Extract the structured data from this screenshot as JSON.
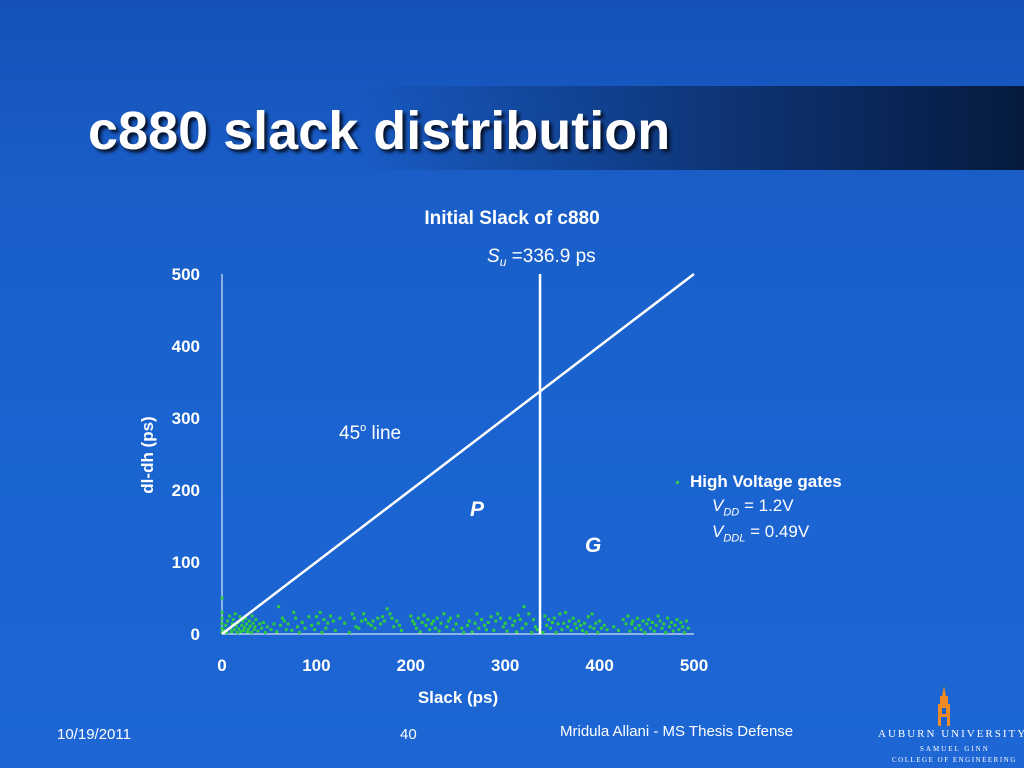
{
  "slide": {
    "title": "c880 slack distribution",
    "footer_date": "10/19/2011",
    "footer_page": "40",
    "footer_author": "Mridula Allani - MS Thesis Defense"
  },
  "logo": {
    "name": "AUBURN UNIVERSITY",
    "sub1": "SAMUEL GINN",
    "sub2": "COLLEGE OF ENGINEERING"
  },
  "legend": {
    "label": "High Voltage gates",
    "vdd_symbol": "V",
    "vdd_sub": "DD",
    "vdd_value": " = 1.2V",
    "vddl_symbol": "V",
    "vddl_sub": "DDL",
    "vddl_value": " = 0.49V"
  },
  "colors": {
    "background": "#1a5ec8",
    "points": "#2ecc40",
    "lines": "#ffffff"
  },
  "chart_data": {
    "type": "scatter",
    "title": "Initial Slack of c880",
    "xlabel": "Slack (ps)",
    "ylabel": "dl-dh (ps)",
    "xlim": [
      0,
      500
    ],
    "ylim": [
      0,
      500
    ],
    "xticks": [
      "0",
      "100",
      "200",
      "300",
      "400",
      "500"
    ],
    "yticks": [
      "0",
      "100",
      "200",
      "300",
      "400",
      "500"
    ],
    "grid": false,
    "legend_position": "right",
    "annotations": {
      "su_symbol": "S",
      "su_sub": "u",
      "su_value": " =336.9 ps",
      "line_label_num": "45",
      "line_label_sup": "o",
      "line_label_text": " line",
      "region_left": "P",
      "region_right": "G"
    },
    "vertical_line_x": 336.9,
    "diagonal_line": {
      "x": [
        0,
        500
      ],
      "y": [
        0,
        500
      ]
    },
    "series": [
      {
        "name": "High Voltage gates",
        "points": [
          [
            0,
            2
          ],
          [
            0,
            8
          ],
          [
            0,
            15
          ],
          [
            0,
            22
          ],
          [
            0,
            30
          ],
          [
            0,
            50
          ],
          [
            2,
            5
          ],
          [
            4,
            12
          ],
          [
            5,
            2
          ],
          [
            6,
            18
          ],
          [
            8,
            25
          ],
          [
            9,
            8
          ],
          [
            10,
            3
          ],
          [
            11,
            14
          ],
          [
            12,
            20
          ],
          [
            13,
            6
          ],
          [
            14,
            28
          ],
          [
            15,
            11
          ],
          [
            16,
            2
          ],
          [
            17,
            16
          ],
          [
            18,
            7
          ],
          [
            19,
            24
          ],
          [
            20,
            3
          ],
          [
            21,
            12
          ],
          [
            22,
            18
          ],
          [
            23,
            5
          ],
          [
            24,
            9
          ],
          [
            25,
            22
          ],
          [
            26,
            14
          ],
          [
            27,
            3
          ],
          [
            28,
            7
          ],
          [
            29,
            18
          ],
          [
            30,
            11
          ],
          [
            31,
            2
          ],
          [
            32,
            25
          ],
          [
            33,
            15
          ],
          [
            34,
            6
          ],
          [
            35,
            10
          ],
          [
            36,
            20
          ],
          [
            38,
            4
          ],
          [
            40,
            14
          ],
          [
            42,
            8
          ],
          [
            44,
            16
          ],
          [
            46,
            2
          ],
          [
            48,
            10
          ],
          [
            52,
            6
          ],
          [
            55,
            14
          ],
          [
            58,
            3
          ],
          [
            60,
            38
          ],
          [
            62,
            12
          ],
          [
            64,
            22
          ],
          [
            66,
            18
          ],
          [
            68,
            6
          ],
          [
            70,
            14
          ],
          [
            74,
            5
          ],
          [
            76,
            30
          ],
          [
            78,
            22
          ],
          [
            80,
            10
          ],
          [
            82,
            2
          ],
          [
            85,
            16
          ],
          [
            88,
            8
          ],
          [
            92,
            24
          ],
          [
            95,
            12
          ],
          [
            98,
            6
          ],
          [
            100,
            24
          ],
          [
            102,
            15
          ],
          [
            104,
            30
          ],
          [
            106,
            2
          ],
          [
            108,
            20
          ],
          [
            110,
            8
          ],
          [
            112,
            15
          ],
          [
            115,
            25
          ],
          [
            118,
            18
          ],
          [
            120,
            5
          ],
          [
            125,
            22
          ],
          [
            130,
            15
          ],
          [
            135,
            2
          ],
          [
            138,
            28
          ],
          [
            140,
            22
          ],
          [
            142,
            10
          ],
          [
            145,
            8
          ],
          [
            148,
            18
          ],
          [
            150,
            28
          ],
          [
            152,
            20
          ],
          [
            155,
            15
          ],
          [
            158,
            12
          ],
          [
            160,
            18
          ],
          [
            162,
            8
          ],
          [
            165,
            22
          ],
          [
            168,
            14
          ],
          [
            170,
            24
          ],
          [
            172,
            18
          ],
          [
            175,
            35
          ],
          [
            178,
            28
          ],
          [
            180,
            22
          ],
          [
            182,
            10
          ],
          [
            185,
            18
          ],
          [
            188,
            12
          ],
          [
            190,
            5
          ],
          [
            200,
            25
          ],
          [
            202,
            18
          ],
          [
            204,
            14
          ],
          [
            206,
            8
          ],
          [
            208,
            22
          ],
          [
            210,
            3
          ],
          [
            212,
            16
          ],
          [
            214,
            26
          ],
          [
            216,
            12
          ],
          [
            218,
            20
          ],
          [
            220,
            6
          ],
          [
            222,
            14
          ],
          [
            224,
            18
          ],
          [
            226,
            8
          ],
          [
            228,
            22
          ],
          [
            230,
            4
          ],
          [
            232,
            15
          ],
          [
            235,
            28
          ],
          [
            238,
            10
          ],
          [
            240,
            18
          ],
          [
            242,
            22
          ],
          [
            245,
            6
          ],
          [
            248,
            14
          ],
          [
            250,
            25
          ],
          [
            254,
            8
          ],
          [
            256,
            2
          ],
          [
            260,
            12
          ],
          [
            262,
            18
          ],
          [
            265,
            3
          ],
          [
            268,
            15
          ],
          [
            270,
            28
          ],
          [
            272,
            8
          ],
          [
            275,
            20
          ],
          [
            278,
            12
          ],
          [
            280,
            6
          ],
          [
            282,
            16
          ],
          [
            285,
            24
          ],
          [
            288,
            5
          ],
          [
            290,
            18
          ],
          [
            292,
            28
          ],
          [
            295,
            22
          ],
          [
            298,
            10
          ],
          [
            300,
            15
          ],
          [
            302,
            4
          ],
          [
            305,
            22
          ],
          [
            308,
            12
          ],
          [
            310,
            18
          ],
          [
            312,
            3
          ],
          [
            314,
            26
          ],
          [
            316,
            20
          ],
          [
            318,
            8
          ],
          [
            320,
            38
          ],
          [
            322,
            14
          ],
          [
            325,
            28
          ],
          [
            328,
            2
          ],
          [
            330,
            20
          ],
          [
            332,
            10
          ],
          [
            334,
            6
          ],
          [
            337,
            16
          ],
          [
            340,
            2
          ],
          [
            342,
            25
          ],
          [
            344,
            12
          ],
          [
            346,
            20
          ],
          [
            348,
            8
          ],
          [
            350,
            16
          ],
          [
            352,
            22
          ],
          [
            354,
            2
          ],
          [
            356,
            14
          ],
          [
            358,
            28
          ],
          [
            360,
            6
          ],
          [
            362,
            15
          ],
          [
            364,
            30
          ],
          [
            366,
            10
          ],
          [
            368,
            18
          ],
          [
            370,
            5
          ],
          [
            372,
            22
          ],
          [
            374,
            14
          ],
          [
            376,
            8
          ],
          [
            378,
            18
          ],
          [
            380,
            12
          ],
          [
            382,
            5
          ],
          [
            384,
            15
          ],
          [
            386,
            2
          ],
          [
            388,
            24
          ],
          [
            390,
            10
          ],
          [
            392,
            28
          ],
          [
            394,
            8
          ],
          [
            396,
            15
          ],
          [
            398,
            2
          ],
          [
            400,
            18
          ],
          [
            402,
            8
          ],
          [
            405,
            12
          ],
          [
            408,
            6
          ],
          [
            415,
            10
          ],
          [
            420,
            5
          ],
          [
            425,
            20
          ],
          [
            428,
            14
          ],
          [
            430,
            25
          ],
          [
            432,
            4
          ],
          [
            434,
            14
          ],
          [
            435,
            18
          ],
          [
            438,
            8
          ],
          [
            440,
            22
          ],
          [
            442,
            12
          ],
          [
            444,
            6
          ],
          [
            446,
            18
          ],
          [
            448,
            2
          ],
          [
            450,
            14
          ],
          [
            452,
            20
          ],
          [
            454,
            8
          ],
          [
            456,
            16
          ],
          [
            458,
            4
          ],
          [
            460,
            12
          ],
          [
            462,
            25
          ],
          [
            464,
            18
          ],
          [
            466,
            8
          ],
          [
            468,
            14
          ],
          [
            470,
            2
          ],
          [
            472,
            22
          ],
          [
            474,
            10
          ],
          [
            476,
            16
          ],
          [
            478,
            4
          ],
          [
            480,
            12
          ],
          [
            482,
            20
          ],
          [
            484,
            6
          ],
          [
            486,
            16
          ],
          [
            488,
            10
          ],
          [
            490,
            2
          ],
          [
            492,
            18
          ],
          [
            494,
            8
          ]
        ]
      }
    ]
  }
}
